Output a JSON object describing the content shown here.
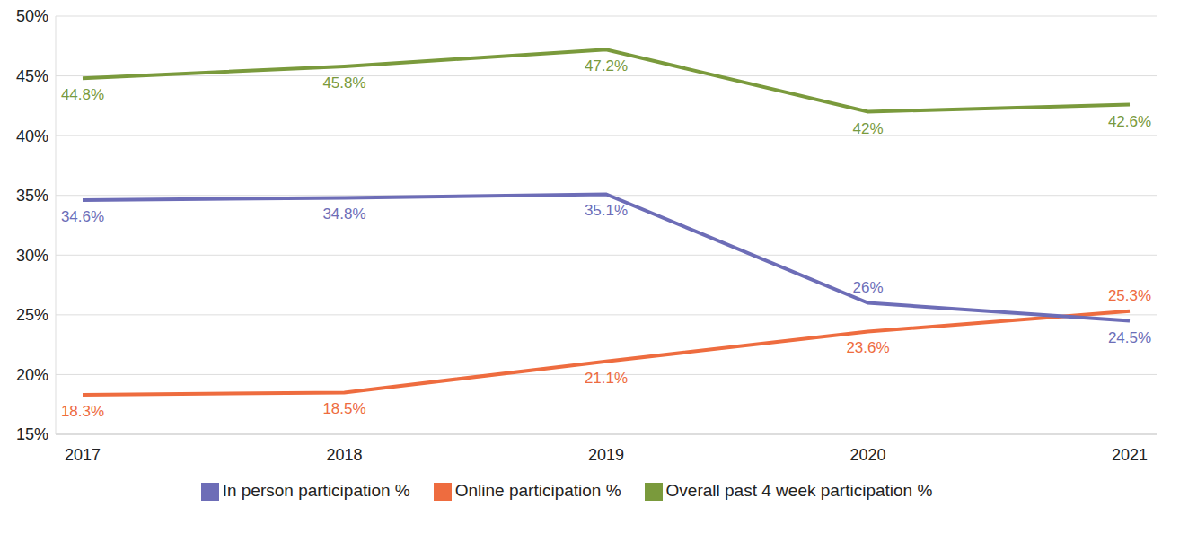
{
  "chart_data": {
    "type": "line",
    "categories": [
      "2017",
      "2018",
      "2019",
      "2020",
      "2021"
    ],
    "series": [
      {
        "name": "Overall past 4 week participation %",
        "color": "#7a9a3c",
        "values": [
          44.8,
          45.8,
          47.2,
          42,
          42.6
        ],
        "value_labels": [
          "44.8%",
          "45.8%",
          "47.2%",
          "42%",
          "42.6%"
        ]
      },
      {
        "name": "Online participation %",
        "color": "#ee6c3f",
        "values": [
          18.3,
          18.5,
          21.1,
          23.6,
          25.3
        ],
        "value_labels": [
          "18.3%",
          "18.5%",
          "21.1%",
          "23.6%",
          "25.3%"
        ]
      },
      {
        "name": "In person participation %",
        "color": "#6d6db7",
        "values": [
          34.6,
          34.8,
          35.1,
          26,
          24.5
        ],
        "value_labels": [
          "34.6%",
          "34.8%",
          "35.1%",
          "26%",
          "24.5%"
        ]
      }
    ],
    "ylim": [
      15,
      50
    ],
    "yticks": [
      {
        "value": 15,
        "label": "15%"
      },
      {
        "value": 20,
        "label": "20%"
      },
      {
        "value": 25,
        "label": "25%"
      },
      {
        "value": 30,
        "label": "30%"
      },
      {
        "value": 35,
        "label": "35%"
      },
      {
        "value": 40,
        "label": "40%"
      },
      {
        "value": 45,
        "label": "45%"
      },
      {
        "value": 50,
        "label": "50%"
      }
    ],
    "grid": true,
    "legend": "bottom",
    "data_labels": true
  }
}
